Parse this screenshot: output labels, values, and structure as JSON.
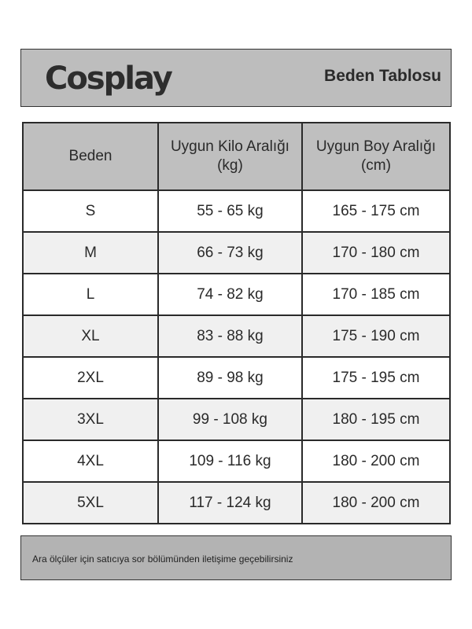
{
  "header": {
    "brand": "Cosplay",
    "title": "Beden Tablosu"
  },
  "table": {
    "columns": [
      "Beden",
      "Uygun Kilo Aralığı (kg)",
      "Uygun Boy Aralığı (cm)"
    ],
    "rows": [
      [
        "S",
        "55 - 65 kg",
        "165 - 175 cm"
      ],
      [
        "M",
        "66 - 73 kg",
        "170 - 180 cm"
      ],
      [
        "L",
        "74 - 82 kg",
        "170 - 185 cm"
      ],
      [
        "XL",
        "83 - 88 kg",
        "175 - 190 cm"
      ],
      [
        "2XL",
        "89 - 98 kg",
        "175 - 195 cm"
      ],
      [
        "3XL",
        "99 - 108 kg",
        "180 - 195 cm"
      ],
      [
        "4XL",
        "109 - 116 kg",
        "180 - 200 cm"
      ],
      [
        "5XL",
        "117 - 124 kg",
        "180 - 200 cm"
      ]
    ]
  },
  "footer": {
    "note": "Ara ölçüler için satıcıya sor bölümünden iletişime geçebilirsiniz"
  },
  "colors": {
    "header_bg": "#bdbdbd",
    "alt_row_bg": "#f0f0f0",
    "footer_bg": "#b3b3b3"
  }
}
